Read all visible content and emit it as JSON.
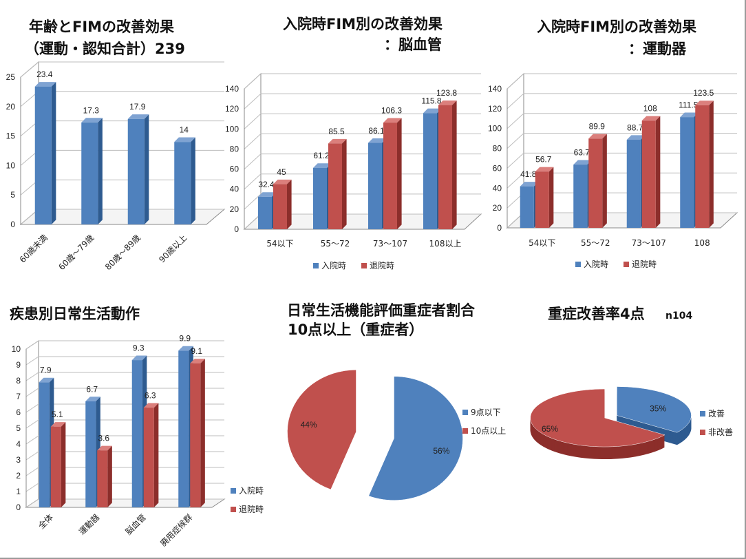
{
  "colors": {
    "blue": "#4F81BD",
    "blue_side": "#2E5B90",
    "blue_top": "#7FA3D2",
    "red": "#C0504D",
    "red_side": "#8C2E2B",
    "red_top": "#DB7F7C",
    "grid": "#bdbdbd",
    "axis": "#8a8a8a"
  },
  "chart_data": [
    {
      "id": "age",
      "type": "bar",
      "title_lines": [
        "年齢とFIMの改善効果",
        "（運動・認知合計）239"
      ],
      "categories": [
        "60歳未満",
        "60歳～79歳",
        "80歳～89歳",
        "90歳以上"
      ],
      "series": [
        {
          "values": [
            23.4,
            17.3,
            17.9,
            14
          ],
          "color": "blue"
        }
      ],
      "ylim": [
        0,
        25
      ],
      "yticks": [
        0,
        5,
        10,
        15,
        20,
        25
      ],
      "grid": true,
      "legend": "none"
    },
    {
      "id": "stroke",
      "type": "bar",
      "title_lines": [
        "入院時FIM別の改善効果",
        "：脳血管"
      ],
      "categories": [
        "54以下",
        "55～72",
        "73～107",
        "108以上"
      ],
      "series": [
        {
          "name": "入院時",
          "values": [
            32.4,
            61.2,
            86.1,
            115.8
          ],
          "color": "blue"
        },
        {
          "name": "退院時",
          "values": [
            45,
            85.5,
            106.3,
            123.8
          ],
          "color": "red"
        }
      ],
      "ylim": [
        0,
        140
      ],
      "yticks": [
        0,
        20,
        40,
        60,
        80,
        100,
        120,
        140
      ],
      "grid": true,
      "legend": "bottom"
    },
    {
      "id": "motor",
      "type": "bar",
      "title_lines": [
        "入院時FIM別の改善効果",
        "：運動器"
      ],
      "categories": [
        "54以下",
        "55～72",
        "73～107",
        "108"
      ],
      "series": [
        {
          "name": "入院時",
          "values": [
            41.8,
            63.7,
            88.7,
            111.5
          ],
          "color": "blue"
        },
        {
          "name": "退院時",
          "values": [
            56.7,
            89.9,
            108,
            123.5
          ],
          "color": "red"
        }
      ],
      "ylim": [
        0,
        140
      ],
      "yticks": [
        0,
        20,
        40,
        60,
        80,
        100,
        120,
        140
      ],
      "grid": true,
      "legend": "bottom"
    },
    {
      "id": "disease",
      "type": "bar",
      "title_lines": [
        "疾患別日常生活動作"
      ],
      "categories": [
        "全体",
        "運動器",
        "脳血管",
        "廃用症候群"
      ],
      "series": [
        {
          "name": "入院時",
          "values": [
            7.9,
            6.7,
            9.3,
            9.9
          ],
          "color": "blue"
        },
        {
          "name": "退院時",
          "values": [
            5.1,
            3.6,
            6.3,
            9.1
          ],
          "color": "red"
        }
      ],
      "ylim": [
        0,
        10
      ],
      "yticks": [
        0,
        1,
        2,
        3,
        4,
        5,
        6,
        7,
        8,
        9,
        10
      ],
      "grid": true,
      "legend": "right"
    },
    {
      "id": "severe",
      "type": "pie",
      "title_lines": [
        "日常生活機能評価重症者割合",
        "10点以上（重症者）"
      ],
      "slices": [
        {
          "label": "9点以下",
          "value": 56,
          "pct_label": "56%",
          "color": "blue"
        },
        {
          "label": "10点以上",
          "value": 44,
          "pct_label": "44%",
          "color": "red"
        }
      ],
      "legend": "right"
    },
    {
      "id": "improve",
      "type": "pie",
      "title_main": "重症改善率4点",
      "title_suffix": "n104",
      "slices": [
        {
          "label": "改善",
          "value": 35,
          "pct_label": "35%",
          "color": "blue"
        },
        {
          "label": "非改善",
          "value": 65,
          "pct_label": "65%",
          "color": "red"
        }
      ],
      "legend": "right"
    }
  ]
}
